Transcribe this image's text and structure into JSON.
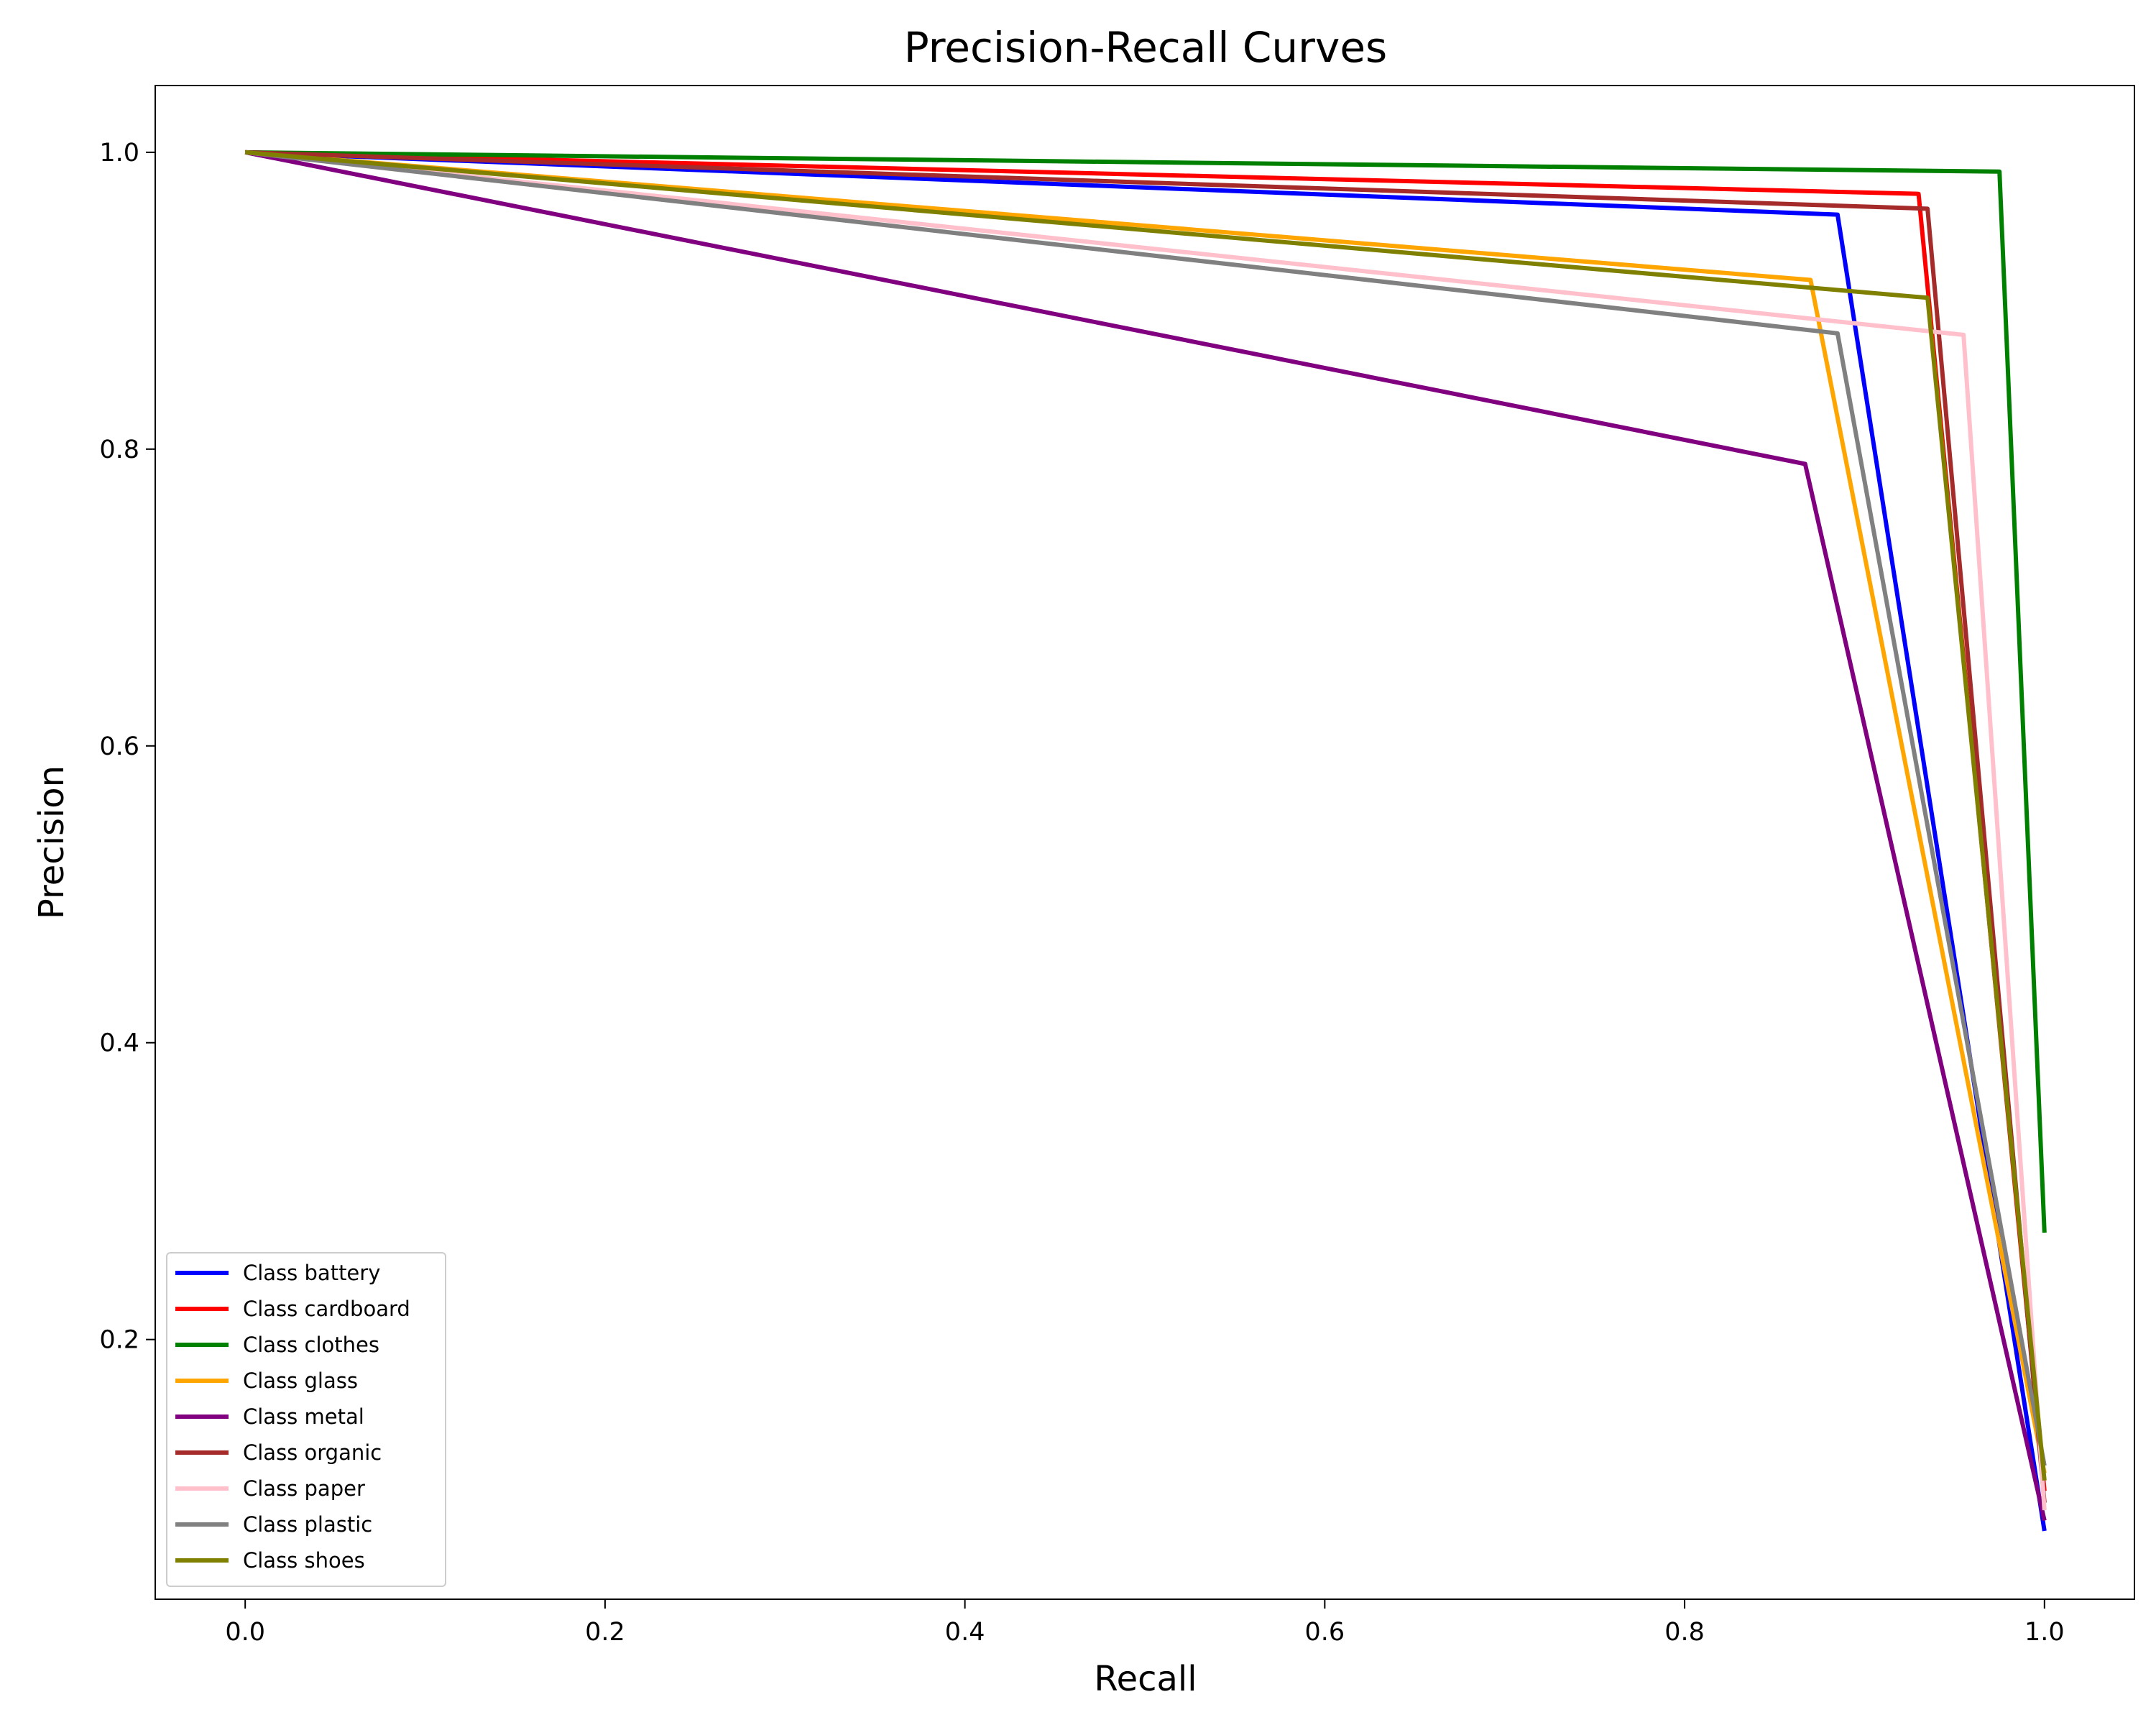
{
  "chart_data": {
    "type": "line",
    "title": "Precision-Recall Curves",
    "xlabel": "Recall",
    "ylabel": "Precision",
    "xlim": [
      -0.05,
      1.05
    ],
    "ylim": [
      0.025,
      1.045
    ],
    "xticks": [
      0.0,
      0.2,
      0.4,
      0.6,
      0.8,
      1.0
    ],
    "yticks": [
      0.2,
      0.4,
      0.6,
      0.8,
      1.0
    ],
    "xtick_labels": [
      "0.0",
      "0.2",
      "0.4",
      "0.6",
      "0.8",
      "1.0"
    ],
    "ytick_labels": [
      "0.2",
      "0.4",
      "0.6",
      "0.8",
      "1.0"
    ],
    "grid": false,
    "legend_position": "lower-left",
    "series": [
      {
        "name": "Class battery",
        "color": "#0000ff",
        "x": [
          0.0,
          0.885,
          1.0
        ],
        "y": [
          1.0,
          0.958,
          0.071
        ]
      },
      {
        "name": "Class cardboard",
        "color": "#ff0000",
        "x": [
          0.0,
          0.93,
          1.0
        ],
        "y": [
          1.0,
          0.972,
          0.098
        ]
      },
      {
        "name": "Class clothes",
        "color": "#008000",
        "x": [
          0.0,
          0.975,
          1.0
        ],
        "y": [
          1.0,
          0.987,
          0.272
        ]
      },
      {
        "name": "Class glass",
        "color": "#ffa500",
        "x": [
          0.0,
          0.87,
          1.0
        ],
        "y": [
          1.0,
          0.914,
          0.11
        ]
      },
      {
        "name": "Class metal",
        "color": "#800080",
        "x": [
          0.0,
          0.867,
          1.0
        ],
        "y": [
          1.0,
          0.79,
          0.078
        ]
      },
      {
        "name": "Class organic",
        "color": "#a52a2a",
        "x": [
          0.0,
          0.935,
          1.0
        ],
        "y": [
          1.0,
          0.962,
          0.09
        ]
      },
      {
        "name": "Class paper",
        "color": "#ffc0cb",
        "x": [
          0.0,
          0.955,
          1.0
        ],
        "y": [
          1.0,
          0.877,
          0.085
        ]
      },
      {
        "name": "Class plastic",
        "color": "#808080",
        "x": [
          0.0,
          0.885,
          1.0
        ],
        "y": [
          1.0,
          0.878,
          0.115
        ]
      },
      {
        "name": "Class shoes",
        "color": "#808000",
        "x": [
          0.0,
          0.935,
          1.0
        ],
        "y": [
          1.0,
          0.902,
          0.105
        ]
      }
    ]
  }
}
